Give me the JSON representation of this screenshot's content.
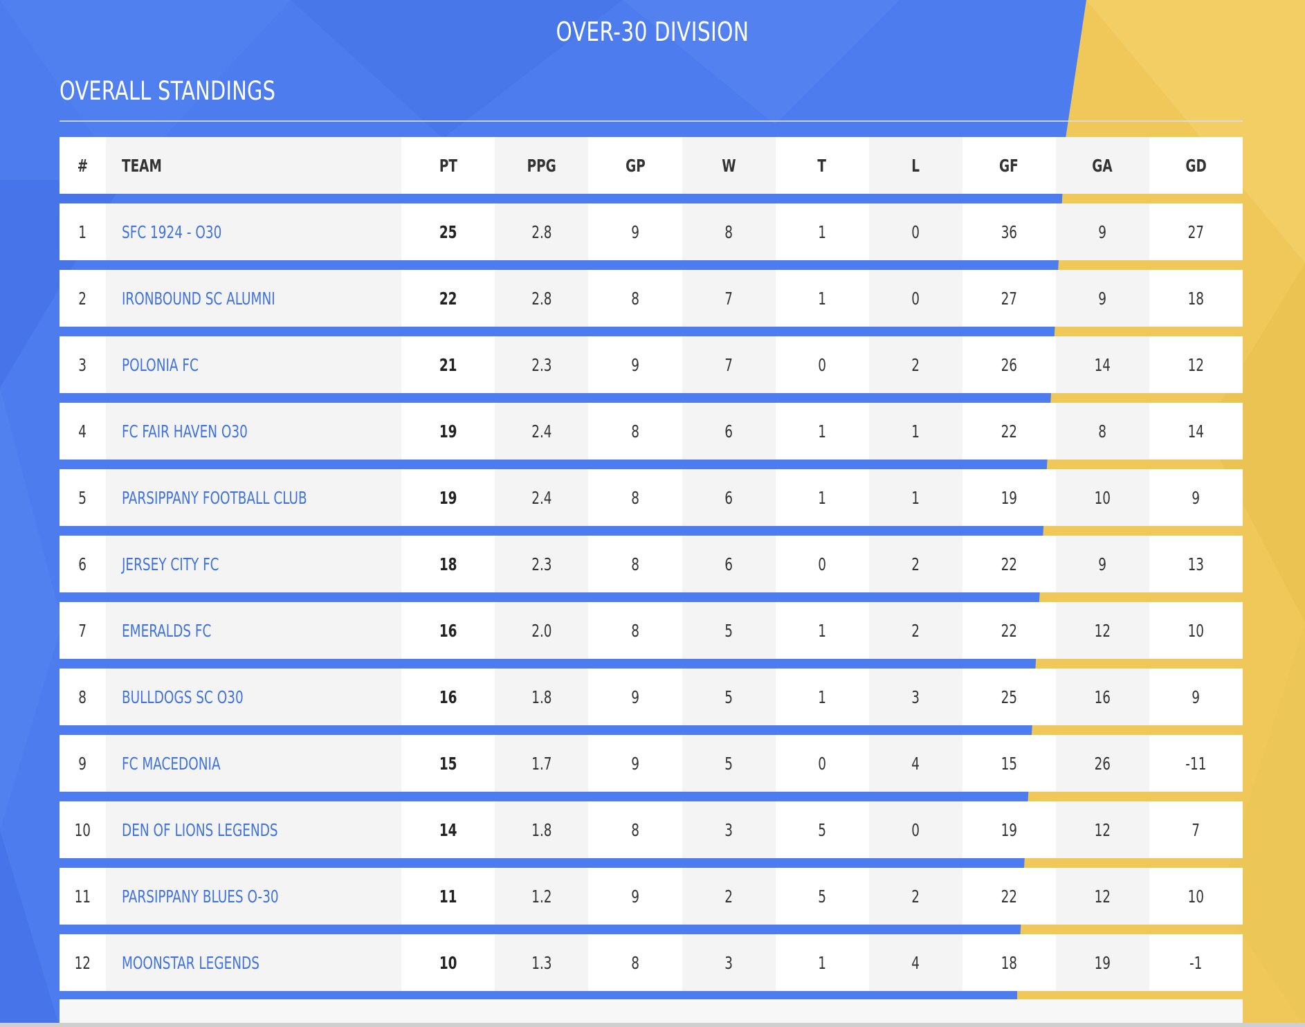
{
  "page": {
    "division_title": "OVER-30 DIVISION",
    "section_title": "OVERALL STANDINGS"
  },
  "theme": {
    "blue": "#4d7cee",
    "yellow": "#f0c85a",
    "team_link_color": "#3f72e0"
  },
  "table": {
    "columns": {
      "rank": "#",
      "team": "TEAM",
      "pt": "PT",
      "ppg": "PPG",
      "gp": "GP",
      "w": "W",
      "t": "T",
      "l": "L",
      "gf": "GF",
      "ga": "GA",
      "gd": "GD"
    },
    "rows": [
      {
        "rank": "1",
        "team": "SFC 1924 - O30",
        "pt": "25",
        "ppg": "2.8",
        "gp": "9",
        "w": "8",
        "t": "1",
        "l": "0",
        "gf": "36",
        "ga": "9",
        "gd": "27"
      },
      {
        "rank": "2",
        "team": "IRONBOUND SC ALUMNI",
        "pt": "22",
        "ppg": "2.8",
        "gp": "8",
        "w": "7",
        "t": "1",
        "l": "0",
        "gf": "27",
        "ga": "9",
        "gd": "18"
      },
      {
        "rank": "3",
        "team": "POLONIA FC",
        "pt": "21",
        "ppg": "2.3",
        "gp": "9",
        "w": "7",
        "t": "0",
        "l": "2",
        "gf": "26",
        "ga": "14",
        "gd": "12"
      },
      {
        "rank": "4",
        "team": "FC FAIR HAVEN O30",
        "pt": "19",
        "ppg": "2.4",
        "gp": "8",
        "w": "6",
        "t": "1",
        "l": "1",
        "gf": "22",
        "ga": "8",
        "gd": "14"
      },
      {
        "rank": "5",
        "team": "PARSIPPANY FOOTBALL CLUB",
        "pt": "19",
        "ppg": "2.4",
        "gp": "8",
        "w": "6",
        "t": "1",
        "l": "1",
        "gf": "19",
        "ga": "10",
        "gd": "9"
      },
      {
        "rank": "6",
        "team": "JERSEY CITY FC",
        "pt": "18",
        "ppg": "2.3",
        "gp": "8",
        "w": "6",
        "t": "0",
        "l": "2",
        "gf": "22",
        "ga": "9",
        "gd": "13"
      },
      {
        "rank": "7",
        "team": "EMERALDS FC",
        "pt": "16",
        "ppg": "2.0",
        "gp": "8",
        "w": "5",
        "t": "1",
        "l": "2",
        "gf": "22",
        "ga": "12",
        "gd": "10"
      },
      {
        "rank": "8",
        "team": "BULLDOGS SC O30",
        "pt": "16",
        "ppg": "1.8",
        "gp": "9",
        "w": "5",
        "t": "1",
        "l": "3",
        "gf": "25",
        "ga": "16",
        "gd": "9"
      },
      {
        "rank": "9",
        "team": "FC MACEDONIA",
        "pt": "15",
        "ppg": "1.7",
        "gp": "9",
        "w": "5",
        "t": "0",
        "l": "4",
        "gf": "15",
        "ga": "26",
        "gd": "-11"
      },
      {
        "rank": "10",
        "team": "DEN OF LIONS LEGENDS",
        "pt": "14",
        "ppg": "1.8",
        "gp": "8",
        "w": "3",
        "t": "5",
        "l": "0",
        "gf": "19",
        "ga": "12",
        "gd": "7"
      },
      {
        "rank": "11",
        "team": "PARSIPPANY BLUES O-30",
        "pt": "11",
        "ppg": "1.2",
        "gp": "9",
        "w": "2",
        "t": "5",
        "l": "2",
        "gf": "22",
        "ga": "12",
        "gd": "10"
      },
      {
        "rank": "12",
        "team": "MOONSTAR LEGENDS",
        "pt": "10",
        "ppg": "1.3",
        "gp": "8",
        "w": "3",
        "t": "1",
        "l": "4",
        "gf": "18",
        "ga": "19",
        "gd": "-1"
      }
    ]
  }
}
